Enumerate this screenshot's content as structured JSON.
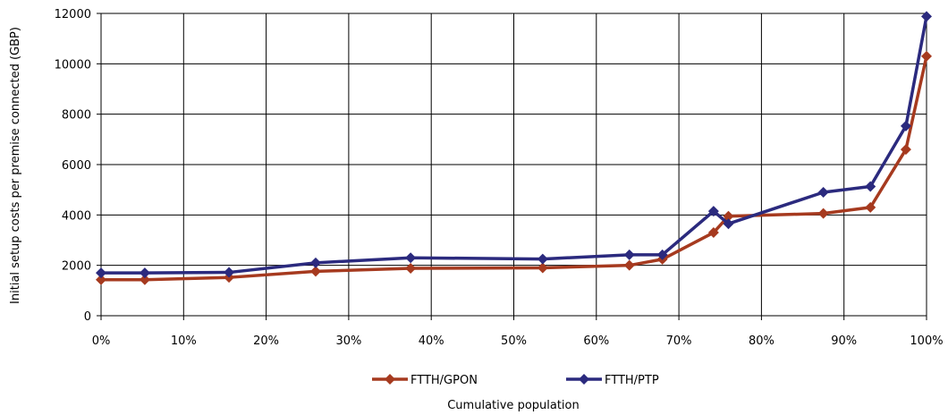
{
  "chart_data": {
    "type": "line",
    "title": "",
    "xlabel": "Cumulative population",
    "ylabel": "Initial setup costs per premise connected (GBP)",
    "xlim": [
      0,
      100
    ],
    "ylim": [
      0,
      12000
    ],
    "x_ticks": [
      0,
      10,
      20,
      30,
      40,
      50,
      60,
      70,
      80,
      90,
      100
    ],
    "x_tick_labels": [
      "0%",
      "10%",
      "20%",
      "30%",
      "40%",
      "50%",
      "60%",
      "70%",
      "80%",
      "90%",
      "100%"
    ],
    "y_ticks": [
      0,
      2000,
      4000,
      6000,
      8000,
      10000,
      12000
    ],
    "y_tick_labels": [
      "0",
      "2000",
      "4000",
      "6000",
      "8000",
      "10000",
      "12000"
    ],
    "grid": true,
    "legend_position": "bottom",
    "series": [
      {
        "name": "FTTH/GPON",
        "color": "#A63A1F",
        "marker": "diamond",
        "x": [
          0,
          5.3,
          15.5,
          26,
          37.5,
          53.5,
          64,
          68,
          74.2,
          76,
          87.5,
          93.2,
          97.5,
          100
        ],
        "y": [
          1430,
          1430,
          1520,
          1760,
          1880,
          1900,
          2000,
          2240,
          3300,
          3950,
          4060,
          4300,
          6600,
          10300
        ]
      },
      {
        "name": "FTTH/PTP",
        "color": "#2B2A7E",
        "marker": "diamond",
        "x": [
          0,
          5.3,
          15.5,
          26,
          37.5,
          53.5,
          64,
          68,
          74.2,
          76,
          87.5,
          93.2,
          97.5,
          100
        ],
        "y": [
          1700,
          1700,
          1720,
          2100,
          2300,
          2250,
          2420,
          2420,
          4150,
          3650,
          4900,
          5130,
          7530,
          11880
        ]
      }
    ]
  }
}
